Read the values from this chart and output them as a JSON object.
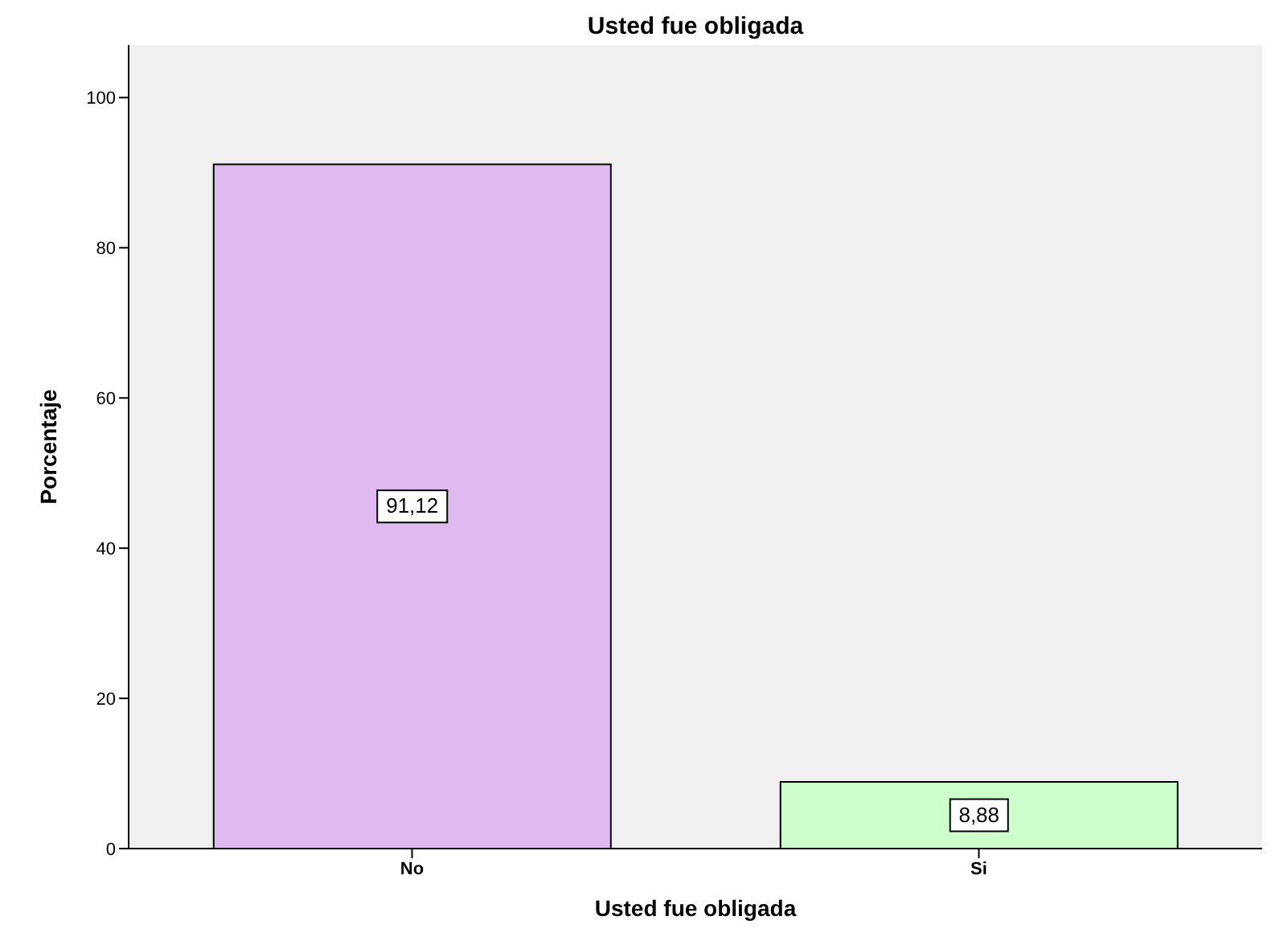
{
  "chart_data": {
    "type": "bar",
    "title": "Usted fue obligada",
    "xlabel": "Usted fue obligada",
    "ylabel": "Porcentaje",
    "categories": [
      "No",
      "Si"
    ],
    "values": [
      91.12,
      8.88
    ],
    "value_labels": [
      "91,12",
      "8,88"
    ],
    "colors": [
      "#dfbaf0",
      "#ccffcc"
    ],
    "ylim": [
      0,
      107
    ],
    "yticks": [
      0,
      20,
      40,
      60,
      80,
      100
    ],
    "grid": false
  }
}
